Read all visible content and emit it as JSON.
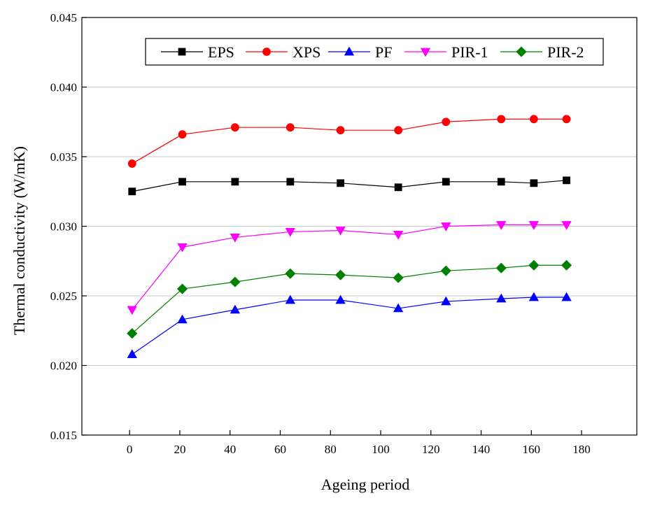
{
  "chart_data": {
    "type": "line",
    "title": "",
    "xlabel": "Ageing period",
    "ylabel": "Thermal conductivity (W/mK)",
    "xlim": [
      -19,
      202
    ],
    "ylim": [
      0.015,
      0.045
    ],
    "xticks": [
      0,
      20,
      40,
      60,
      80,
      100,
      120,
      140,
      160,
      180
    ],
    "xtick_labels": [
      "0",
      "20",
      "40",
      "60",
      "80",
      "100",
      "120",
      "140",
      "160",
      "180"
    ],
    "yticks": [
      0.015,
      0.02,
      0.025,
      0.03,
      0.035,
      0.04,
      0.045
    ],
    "ytick_labels": [
      "0.015",
      "0.020",
      "0.025",
      "0.030",
      "0.035",
      "0.040",
      "0.045"
    ],
    "grid": "horizontal",
    "legend_position": "top, single row",
    "x": [
      1,
      21,
      42,
      64,
      84,
      107,
      126,
      148,
      161,
      174
    ],
    "series": [
      {
        "name": "EPS",
        "color": "#000000",
        "marker": "square",
        "values": [
          0.0325,
          0.0332,
          0.0332,
          0.0332,
          0.0331,
          0.0328,
          0.0332,
          0.0332,
          0.0331,
          0.0333
        ]
      },
      {
        "name": "XPS",
        "color": "#ff0000",
        "marker": "circle",
        "values": [
          0.0345,
          0.0366,
          0.0371,
          0.0371,
          0.0369,
          0.0369,
          0.0375,
          0.0377,
          0.0377,
          0.0377
        ]
      },
      {
        "name": "PF",
        "color": "#0000ff",
        "marker": "triangle-up",
        "values": [
          0.0208,
          0.0233,
          0.024,
          0.0247,
          0.0247,
          0.0241,
          0.0246,
          0.0248,
          0.0249,
          0.0249
        ]
      },
      {
        "name": "PIR-1",
        "color": "#ff00ff",
        "marker": "triangle-down",
        "values": [
          0.024,
          0.0285,
          0.0292,
          0.0296,
          0.0297,
          0.0294,
          0.03,
          0.0301,
          0.0301,
          0.0301
        ]
      },
      {
        "name": "PIR-2",
        "color": "#008000",
        "marker": "diamond",
        "values": [
          0.0223,
          0.0255,
          0.026,
          0.0266,
          0.0265,
          0.0263,
          0.0268,
          0.027,
          0.0272,
          0.0272
        ]
      }
    ]
  }
}
